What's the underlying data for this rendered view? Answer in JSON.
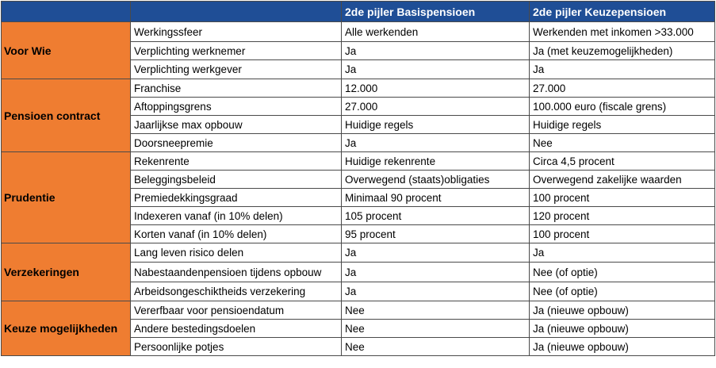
{
  "header": {
    "col1": "",
    "col2": "",
    "col3": "2de pijler Basispensioen",
    "col4": "2de pijler Keuzepensioen"
  },
  "groups": [
    {
      "category": "Voor Wie",
      "rows": [
        [
          "Werkingssfeer",
          "Alle werkenden",
          "Werkenden met inkomen >33.000"
        ],
        [
          "Verplichting werknemer",
          "Ja",
          "Ja (met keuzemogelijkheden)"
        ],
        [
          "Verplichting werkgever",
          "Ja",
          "Ja"
        ]
      ]
    },
    {
      "category": "Pensioen contract",
      "rows": [
        [
          "Franchise",
          "12.000",
          "27.000"
        ],
        [
          "Aftoppingsgrens",
          "27.000",
          "100.000 euro (fiscale grens)"
        ],
        [
          "Jaarlijkse max opbouw",
          "Huidige regels",
          "Huidige regels"
        ],
        [
          "Doorsneepremie",
          "Ja",
          "Nee"
        ]
      ]
    },
    {
      "category": "Prudentie",
      "rows": [
        [
          "Rekenrente",
          "Huidige rekenrente",
          "Circa 4,5 procent"
        ],
        [
          "Beleggingsbeleid",
          "Overwegend (staats)obligaties",
          "Overwegend zakelijke waarden"
        ],
        [
          "Premiedekkingsgraad",
          "Minimaal 90 procent",
          "100 procent"
        ],
        [
          "Indexeren vanaf (in 10% delen)",
          "105 procent",
          "120 procent"
        ],
        [
          "Korten vanaf (in 10% delen)",
          "95 procent",
          "100 procent"
        ]
      ]
    },
    {
      "category": "Verzekeringen",
      "rows": [
        [
          "Lang leven risico delen",
          "Ja",
          "Ja"
        ],
        [
          "Nabestaandenpensioen tijdens opbouw",
          "Ja",
          "Nee (of optie)"
        ],
        [
          "Arbeidsongeschiktheids verzekering",
          "Ja",
          "Nee (of optie)"
        ]
      ]
    },
    {
      "category": "Keuze mogelijkheden",
      "rows": [
        [
          "Vererfbaar voor pensioendatum",
          "Nee",
          "Ja (nieuwe opbouw)"
        ],
        [
          "Andere bestedingsdoelen",
          "Nee",
          "Ja (nieuwe opbouw)"
        ],
        [
          "Persoonlijke potjes",
          "Nee",
          "Ja (nieuwe opbouw)"
        ]
      ]
    }
  ]
}
